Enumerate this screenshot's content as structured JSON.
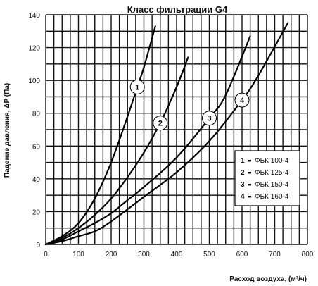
{
  "chart_data": {
    "type": "line",
    "title": "Класс фильтрации G4",
    "xlabel": "Расход воздуха, (м³/ч)",
    "ylabel": "Падение давления, ΔP (Па)",
    "xlim": [
      0,
      800
    ],
    "ylim": [
      0,
      140
    ],
    "xticks": [
      "0",
      "100",
      "200",
      "300",
      "400",
      "500",
      "600",
      "700",
      "800"
    ],
    "yticks": [
      "0",
      "20",
      "40",
      "60",
      "80",
      "100",
      "120",
      "140"
    ],
    "grid": true,
    "legend_position": "right",
    "series": [
      {
        "id": "1",
        "name": "ФБК 100-4",
        "x": [
          0,
          50,
          100,
          150,
          200,
          250,
          280,
          300,
          335
        ],
        "y": [
          0,
          5,
          13,
          28,
          50,
          78,
          96,
          108,
          133
        ]
      },
      {
        "id": "2",
        "name": "ФБК 125-4",
        "x": [
          0,
          50,
          100,
          150,
          200,
          250,
          300,
          350,
          400,
          435
        ],
        "y": [
          0,
          4,
          10,
          18,
          28,
          41,
          56,
          74,
          96,
          114
        ]
      },
      {
        "id": "3",
        "name": "ФБК 150-4",
        "x": [
          0,
          50,
          100,
          150,
          200,
          250,
          300,
          400,
          500,
          550,
          625
        ],
        "y": [
          0,
          3,
          8,
          13,
          19,
          27,
          35,
          53,
          77,
          91,
          127
        ]
      },
      {
        "id": "4",
        "name": "ФБК 160-4",
        "x": [
          0,
          50,
          100,
          150,
          200,
          300,
          400,
          500,
          600,
          650,
          740
        ],
        "y": [
          0,
          2,
          5,
          8,
          14,
          29,
          44,
          63,
          88,
          103,
          135
        ]
      }
    ]
  }
}
